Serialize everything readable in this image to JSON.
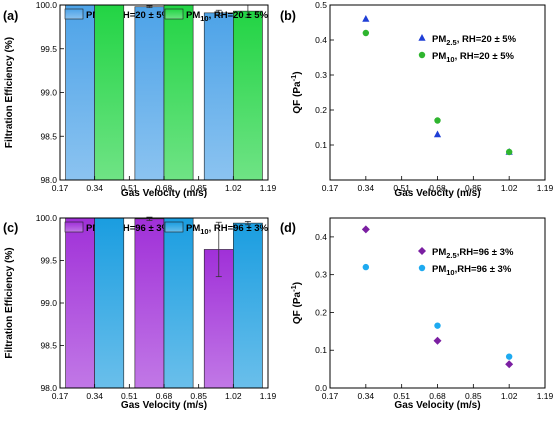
{
  "chart_data": [
    {
      "panel": "(a)",
      "type": "bar",
      "x": [
        0.34,
        0.68,
        1.02
      ],
      "series": [
        {
          "name": "PM2.5, RH=20 ± 5%",
          "legend_main": "PM",
          "legend_sub": "2.5",
          "legend_rest": ", RH=20 ± 5%",
          "values": [
            100.0,
            99.98,
            99.91
          ],
          "errors": [
            0.0,
            0.01,
            0.03
          ],
          "color": "#4da3e8"
        },
        {
          "name": "PM10, RH=20 ± 5%",
          "legend_main": "PM",
          "legend_sub": "10",
          "legend_rest": ", RH=20 ± 5%",
          "values": [
            100.0,
            100.0,
            99.93
          ],
          "errors": [
            0.0,
            0.0,
            0.07
          ],
          "color": "#22d444"
        }
      ],
      "xlabel": "Gas Velocity (m/s)",
      "ylabel": "Filtration Efficiency (%)",
      "xlim": [
        0.17,
        1.19
      ],
      "ylim": [
        98.0,
        100.0
      ],
      "xticks": [
        "0.17",
        "0.34",
        "0.51",
        "0.68",
        "0.85",
        "1.02",
        "1.19"
      ],
      "yticks": [
        "98.0",
        "98.5",
        "99.0",
        "99.5",
        "100.0"
      ],
      "legend_position": "top",
      "grid": false
    },
    {
      "panel": "(b)",
      "type": "scatter",
      "series": [
        {
          "name": "PM2.5, RH=20 ± 5%",
          "legend_main": "PM",
          "legend_sub": "2.5",
          "legend_rest": ", RH=20 ± 5%",
          "marker": "triangle",
          "color": "#1f3fd6",
          "x": [
            0.34,
            0.68,
            1.02
          ],
          "y": [
            0.46,
            0.13,
            0.08
          ]
        },
        {
          "name": "PM10, RH=20 ± 5%",
          "legend_main": "PM",
          "legend_sub": "10",
          "legend_rest": ", RH=20 ± 5%",
          "marker": "circle",
          "color": "#2fb52f",
          "x": [
            0.34,
            0.68,
            1.02
          ],
          "y": [
            0.42,
            0.17,
            0.08
          ]
        }
      ],
      "xlabel": "Gas Velocity (m/s)",
      "ylabel_main": "QF (Pa",
      "ylabel_sup": "-1",
      "ylabel_end": ")",
      "xlim": [
        0.17,
        1.19
      ],
      "ylim": [
        0.0,
        0.5
      ],
      "xticks": [
        "0.17",
        "0.34",
        "0.51",
        "0.68",
        "0.85",
        "1.02",
        "1.19"
      ],
      "yticks": [
        "0.1",
        "0.2",
        "0.3",
        "0.4",
        "0.5"
      ],
      "legend_position": "top-right",
      "grid": false
    },
    {
      "panel": "(c)",
      "type": "bar",
      "x": [
        0.34,
        0.68,
        1.02
      ],
      "series": [
        {
          "name": "PM2.5, RH=96 ± 3%",
          "legend_main": "PM",
          "legend_sub": "2.5",
          "legend_rest": ", RH=96 ± 3%",
          "values": [
            100.0,
            99.99,
            99.63
          ],
          "errors": [
            0.0,
            0.02,
            0.32
          ],
          "color": "#a030d8"
        },
        {
          "name": "PM10, RH=96 ± 3%",
          "legend_main": "PM",
          "legend_sub": "10",
          "legend_rest": ", RH=96 ± 3%",
          "values": [
            100.0,
            100.0,
            99.94
          ],
          "errors": [
            0.0,
            0.0,
            0.02
          ],
          "color": "#1a9de0"
        }
      ],
      "xlabel": "Gas Velocity (m/s)",
      "ylabel": "Filtration Efficiency (%)",
      "xlim": [
        0.17,
        1.19
      ],
      "ylim": [
        98.0,
        100.0
      ],
      "xticks": [
        "0.17",
        "0.34",
        "0.51",
        "0.68",
        "0.85",
        "1.02",
        "1.19"
      ],
      "yticks": [
        "98.0",
        "98.5",
        "99.0",
        "99.5",
        "100.0"
      ],
      "legend_position": "top",
      "grid": false
    },
    {
      "panel": "(d)",
      "type": "scatter",
      "series": [
        {
          "name": "PM2.5,RH=96 ± 3%",
          "legend_main": "PM",
          "legend_sub": "2.5",
          "legend_rest": ",RH=96 ± 3%",
          "marker": "diamond",
          "color": "#7b1fa2",
          "x": [
            0.34,
            0.68,
            1.02
          ],
          "y": [
            0.42,
            0.125,
            0.063
          ]
        },
        {
          "name": "PM10,RH=96 ± 3%",
          "legend_main": "PM",
          "legend_sub": "10",
          "legend_rest": ",RH=96 ± 3%",
          "marker": "circle",
          "color": "#1eaaf0",
          "x": [
            0.34,
            0.68,
            1.02
          ],
          "y": [
            0.32,
            0.165,
            0.083
          ]
        }
      ],
      "xlabel": "Gas Velocity (m/s)",
      "ylabel_main": "QF (Pa",
      "ylabel_sup": "-1",
      "ylabel_end": ")",
      "xlim": [
        0.17,
        1.19
      ],
      "ylim": [
        0.0,
        0.45
      ],
      "xticks": [
        "0.17",
        "0.34",
        "0.51",
        "0.68",
        "0.85",
        "1.02",
        "1.19"
      ],
      "yticks": [
        "0.0",
        "0.1",
        "0.2",
        "0.3",
        "0.4"
      ],
      "legend_position": "top-right",
      "grid": false
    }
  ]
}
